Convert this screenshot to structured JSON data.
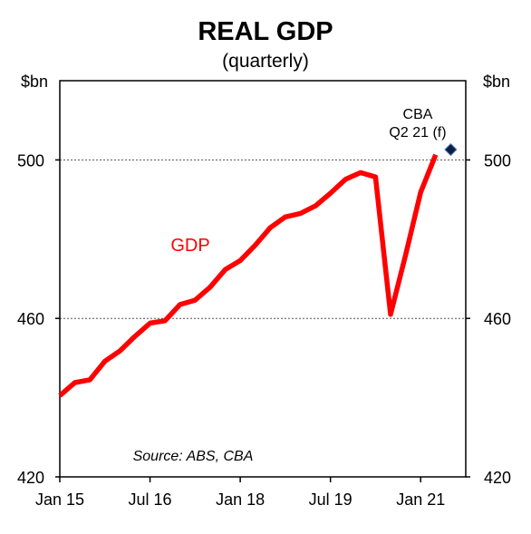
{
  "chart_data": {
    "type": "line",
    "title": "REAL GDP",
    "subtitle": "(quarterly)",
    "y_unit_left": "$bn",
    "y_unit_right": "$bn",
    "ylim": [
      420,
      520
    ],
    "y_ticks": [
      420,
      460,
      500
    ],
    "y_tick_labels": [
      "420",
      "460",
      "500"
    ],
    "x_tick_labels": [
      "Jan 15",
      "Jul 16",
      "Jan 18",
      "Jul 19",
      "Jan 21"
    ],
    "x_tick_dates": [
      "2015-01",
      "2016-07",
      "2018-01",
      "2019-07",
      "2021-01"
    ],
    "x_range": [
      "2015-01",
      "2021-10"
    ],
    "gridlines": [
      460,
      500
    ],
    "series": [
      {
        "name": "GDP",
        "color": "#ff0000",
        "x": [
          "2015-01",
          "2015-04",
          "2015-07",
          "2015-10",
          "2016-01",
          "2016-04",
          "2016-07",
          "2016-10",
          "2017-01",
          "2017-04",
          "2017-07",
          "2017-10",
          "2018-01",
          "2018-04",
          "2018-07",
          "2018-10",
          "2019-01",
          "2019-04",
          "2019-07",
          "2019-10",
          "2020-01",
          "2020-04",
          "2020-07",
          "2020-10",
          "2021-01",
          "2021-04"
        ],
        "values": [
          440.5,
          443.8,
          444.5,
          449.2,
          451.8,
          455.5,
          458.8,
          459.4,
          463.5,
          464.6,
          467.9,
          472.3,
          474.6,
          478.5,
          482.9,
          485.6,
          486.5,
          488.4,
          491.6,
          495.1,
          496.8,
          495.7,
          461.0,
          476.0,
          491.8,
          501.3
        ],
        "forecast": {
          "label_line1": "CBA",
          "label_line2": "Q2 21 (f)",
          "x": "2021-07",
          "value": 502.6,
          "color": "#0b1f3f"
        }
      }
    ],
    "annotations": {
      "series_label": "GDP",
      "source": "Source: ABS, CBA"
    },
    "grid": true
  }
}
